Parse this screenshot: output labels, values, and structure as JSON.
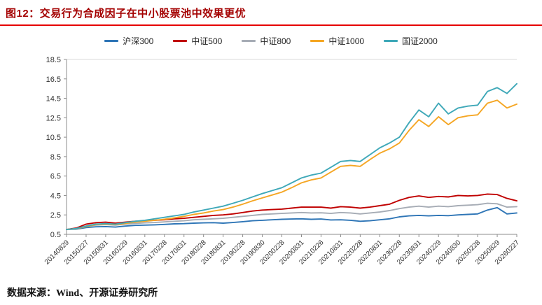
{
  "header": {
    "title": "图12：交易行为合成因子在中小股票池中效果更优",
    "title_color": "#a40000",
    "underline_color": "#e60000"
  },
  "footer": {
    "source": "数据来源：Wind、开源证券研究所"
  },
  "chart_data": {
    "type": "line",
    "title": "",
    "xlabel": "",
    "ylabel": "",
    "grid": false,
    "legend_position": "top-center",
    "ylim": [
      0.5,
      18.5
    ],
    "yticks": [
      0.5,
      2.5,
      4.5,
      6.5,
      8.5,
      10.5,
      12.5,
      14.5,
      16.5,
      18.5
    ],
    "points_per_label": 2,
    "x_tick_labels": [
      "20140829",
      "20150227",
      "20150831",
      "20160229",
      "20160831",
      "20170228",
      "20170831",
      "20180228",
      "20180831",
      "20190228",
      "20190830",
      "20200228",
      "20200831",
      "20210226",
      "20210831",
      "20220228",
      "20220831",
      "20230228",
      "20230831",
      "20240229",
      "20240830",
      "20250228",
      "20250829",
      "20260227"
    ],
    "series": [
      {
        "name": "沪深300",
        "color": "#2e75b6",
        "values": [
          1.0,
          1.03,
          1.2,
          1.28,
          1.3,
          1.25,
          1.35,
          1.42,
          1.45,
          1.48,
          1.52,
          1.58,
          1.6,
          1.65,
          1.68,
          1.7,
          1.65,
          1.72,
          1.8,
          1.9,
          1.95,
          2.0,
          2.05,
          2.08,
          2.1,
          2.05,
          2.08,
          1.98,
          2.0,
          1.95,
          1.85,
          1.9,
          2.0,
          2.1,
          2.3,
          2.4,
          2.45,
          2.4,
          2.45,
          2.42,
          2.5,
          2.55,
          2.6,
          3.0,
          3.25,
          2.6,
          2.7
        ]
      },
      {
        "name": "中证500",
        "color": "#c00000",
        "values": [
          1.0,
          1.15,
          1.55,
          1.7,
          1.75,
          1.65,
          1.75,
          1.85,
          1.9,
          1.95,
          2.0,
          2.1,
          2.15,
          2.25,
          2.35,
          2.45,
          2.5,
          2.6,
          2.75,
          2.9,
          3.0,
          3.05,
          3.1,
          3.2,
          3.3,
          3.3,
          3.3,
          3.2,
          3.35,
          3.3,
          3.2,
          3.3,
          3.45,
          3.6,
          4.0,
          4.3,
          4.45,
          4.3,
          4.4,
          4.35,
          4.5,
          4.45,
          4.5,
          4.65,
          4.6,
          4.2,
          3.95
        ]
      },
      {
        "name": "中证800",
        "color": "#a6acb5",
        "values": [
          1.0,
          1.08,
          1.35,
          1.45,
          1.5,
          1.45,
          1.55,
          1.62,
          1.68,
          1.72,
          1.78,
          1.85,
          1.9,
          2.0,
          2.05,
          2.1,
          2.15,
          2.25,
          2.35,
          2.45,
          2.55,
          2.6,
          2.65,
          2.7,
          2.75,
          2.7,
          2.72,
          2.65,
          2.75,
          2.7,
          2.6,
          2.7,
          2.8,
          2.95,
          3.15,
          3.3,
          3.4,
          3.3,
          3.4,
          3.35,
          3.45,
          3.5,
          3.55,
          3.7,
          3.65,
          3.3,
          3.35
        ]
      },
      {
        "name": "中证1000",
        "color": "#f5a623",
        "values": [
          1.0,
          1.08,
          1.3,
          1.5,
          1.55,
          1.5,
          1.62,
          1.75,
          1.85,
          1.95,
          2.05,
          2.2,
          2.35,
          2.55,
          2.7,
          2.9,
          3.05,
          3.3,
          3.6,
          3.95,
          4.25,
          4.55,
          4.85,
          5.3,
          5.8,
          6.1,
          6.3,
          6.9,
          7.5,
          7.6,
          7.5,
          8.2,
          8.85,
          9.3,
          9.9,
          11.2,
          12.3,
          11.6,
          12.6,
          11.8,
          12.5,
          12.7,
          12.8,
          14.0,
          14.3,
          13.5,
          13.9
        ]
      },
      {
        "name": "国证2000",
        "color": "#3ea8b8",
        "values": [
          1.0,
          1.1,
          1.35,
          1.55,
          1.6,
          1.55,
          1.7,
          1.85,
          1.95,
          2.1,
          2.25,
          2.4,
          2.55,
          2.8,
          3.0,
          3.2,
          3.4,
          3.7,
          4.0,
          4.35,
          4.7,
          5.0,
          5.3,
          5.8,
          6.3,
          6.6,
          6.8,
          7.4,
          8.0,
          8.1,
          8.0,
          8.7,
          9.4,
          9.9,
          10.5,
          12.0,
          13.3,
          12.6,
          14.0,
          12.9,
          13.5,
          13.7,
          13.8,
          15.2,
          15.6,
          15.0,
          16.0
        ]
      }
    ]
  }
}
